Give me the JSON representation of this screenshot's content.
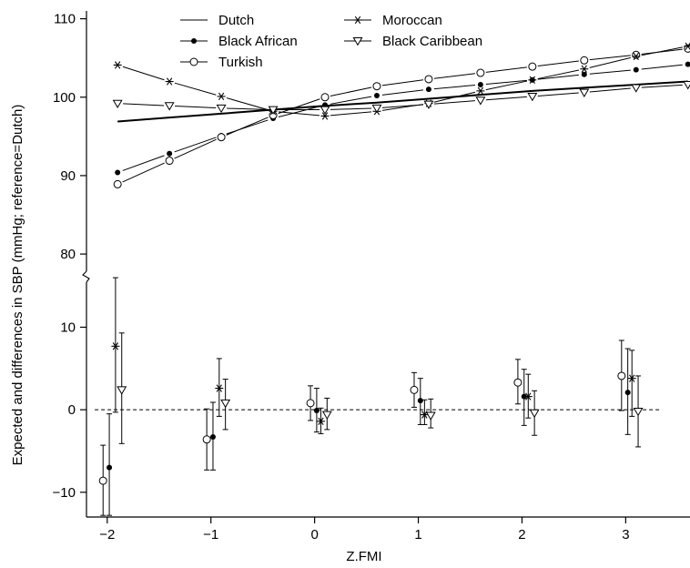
{
  "chart_data": {
    "type": "line",
    "xlabel": "Z.FMI",
    "ylabel": "Expected and differences in SBP (mmHg; reference=Dutch)",
    "x_ticks": [
      -2,
      -1,
      0,
      1,
      2,
      3
    ],
    "x_tick_labels": [
      "−2",
      "−1",
      "0",
      "1",
      "2",
      "3"
    ],
    "xlim": [
      -2.2,
      3.62
    ],
    "upper_panel": {
      "y_ticks": [
        80,
        90,
        100,
        110
      ],
      "y_tick_labels": [
        "80",
        "90",
        "100",
        "110"
      ],
      "ylim": [
        78.5,
        111
      ],
      "x": [
        -1.9,
        -1.4,
        -0.9,
        -0.4,
        0.1,
        0.6,
        1.1,
        1.6,
        2.1,
        2.6,
        3.1,
        3.6
      ],
      "series": [
        {
          "name": "Dutch",
          "marker": "none",
          "values": [
            96.9,
            97.4,
            97.9,
            98.4,
            98.9,
            99.3,
            99.8,
            100.3,
            100.8,
            101.2,
            101.6,
            102.0
          ]
        },
        {
          "name": "Black African",
          "marker": "dot",
          "values": [
            90.4,
            92.8,
            95.1,
            97.3,
            99.0,
            100.2,
            101.0,
            101.6,
            102.2,
            102.9,
            103.5,
            104.2
          ]
        },
        {
          "name": "Turkish",
          "marker": "circle",
          "values": [
            88.9,
            91.9,
            94.9,
            97.7,
            100.0,
            101.4,
            102.3,
            103.1,
            103.9,
            104.7,
            105.4,
            106.2
          ]
        },
        {
          "name": "Moroccan",
          "marker": "asterisk",
          "values": [
            104.1,
            102.0,
            100.1,
            98.2,
            97.6,
            98.2,
            99.2,
            100.8,
            102.2,
            103.6,
            105.2,
            106.5
          ]
        },
        {
          "name": "Black Caribbean",
          "marker": "triangle",
          "values": [
            99.2,
            98.9,
            98.6,
            98.4,
            98.4,
            98.6,
            99.1,
            99.6,
            100.1,
            100.6,
            101.2,
            101.6
          ]
        }
      ]
    },
    "lower_panel": {
      "y_ticks": [
        -10,
        0,
        10
      ],
      "y_tick_labels": [
        "−10",
        "0",
        "10"
      ],
      "ylim": [
        -13,
        17
      ],
      "reference_line": 0,
      "groups": [
        {
          "series": "Turkish",
          "marker": "circle",
          "x": [
            -2.04,
            -1.04,
            -0.04,
            0.96,
            1.96,
            2.96
          ],
          "values": [
            -8.6,
            -3.6,
            0.8,
            2.4,
            3.3,
            4.1
          ],
          "lower": [
            -12.8,
            -7.3,
            -1.3,
            0.3,
            0.7,
            -0.1
          ],
          "upper": [
            -4.3,
            0.1,
            2.9,
            4.5,
            6.1,
            8.4
          ]
        },
        {
          "series": "Black African",
          "marker": "dot",
          "x": [
            -1.98,
            -0.98,
            0.02,
            1.02,
            2.02,
            3.02
          ],
          "values": [
            -7.0,
            -3.3,
            -0.1,
            1.1,
            1.6,
            2.1
          ],
          "lower": [
            -12.8,
            -7.3,
            -2.7,
            -1.8,
            -1.9,
            -3.0
          ],
          "upper": [
            -0.5,
            0.9,
            2.6,
            3.8,
            4.9,
            7.4
          ]
        },
        {
          "series": "Moroccan",
          "marker": "asterisk",
          "x": [
            -1.92,
            -0.92,
            0.06,
            1.06,
            2.06,
            3.06
          ],
          "values": [
            7.7,
            2.6,
            -1.4,
            -0.6,
            1.6,
            3.8
          ],
          "lower": [
            -0.3,
            -0.8,
            -2.9,
            -1.8,
            -1.0,
            -0.8
          ],
          "upper": [
            16.0,
            6.2,
            0.2,
            1.2,
            4.3,
            7.2
          ]
        },
        {
          "series": "Black Caribbean",
          "marker": "triangle",
          "x": [
            -1.86,
            -0.86,
            0.12,
            1.12,
            2.12,
            3.12
          ],
          "values": [
            2.4,
            0.8,
            -0.6,
            -0.7,
            -0.4,
            -0.2
          ],
          "lower": [
            -4.1,
            -2.4,
            -2.4,
            -2.2,
            -3.1,
            -4.5
          ],
          "upper": [
            9.3,
            3.7,
            1.4,
            1.3,
            2.3,
            4.1
          ]
        }
      ]
    },
    "legend": {
      "placement": "top",
      "entries": [
        {
          "label": "Dutch",
          "marker": "none"
        },
        {
          "label": "Black African",
          "marker": "dot"
        },
        {
          "label": "Turkish",
          "marker": "circle"
        },
        {
          "label": "Moroccan",
          "marker": "asterisk"
        },
        {
          "label": "Black Caribbean",
          "marker": "triangle"
        }
      ]
    }
  }
}
